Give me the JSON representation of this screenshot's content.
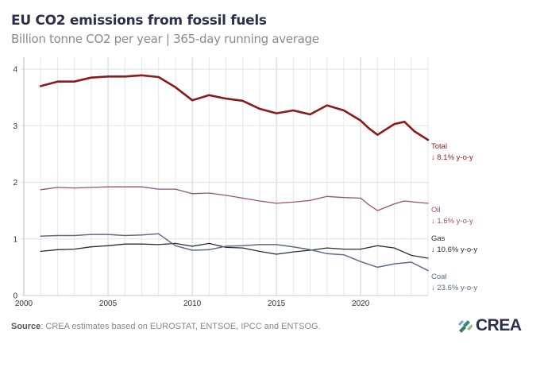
{
  "header": {
    "title": "EU CO2 emissions from fossil fuels",
    "subtitle": "Billion tonne CO2 per year | 365-day running average"
  },
  "footer": {
    "source_label": "Source",
    "source_text": ": CREA estimates based on EUROSTAT, ENTSOE, IPCC and ENTSOG.",
    "logo_text": "CREA",
    "logo_icon": "crea-leaf-icon"
  },
  "chart_data": {
    "type": "line",
    "title": "EU CO2 emissions from fossil fuels",
    "subtitle": "Billion tonne CO2 per year | 365-day running average",
    "xlabel": "",
    "ylabel": "Billion tonne CO2 per year",
    "xlim": [
      2000,
      2024
    ],
    "ylim": [
      0,
      4.2
    ],
    "grid": true,
    "x_ticks": [
      "2000",
      "2005",
      "2010",
      "2015",
      "2020"
    ],
    "x_tick_values": [
      2000,
      2005,
      2010,
      2015,
      2020
    ],
    "y_ticks": [
      "0",
      "1",
      "2",
      "3",
      "4"
    ],
    "y_tick_values": [
      0,
      1,
      2,
      3,
      4
    ],
    "legend": "direct-labels-right",
    "series": [
      {
        "name": "Total",
        "annotation": "↓ 8.1% y-o-y",
        "color": "#8b1a1a",
        "x": [
          2001,
          2002,
          2003,
          2004,
          2005,
          2006,
          2007,
          2008,
          2009,
          2010,
          2011,
          2012,
          2013,
          2014,
          2015,
          2016,
          2017,
          2018,
          2019,
          2020,
          2020.5,
          2021,
          2022,
          2022.6,
          2023.2,
          2024
        ],
        "values": [
          3.7,
          3.78,
          3.78,
          3.85,
          3.87,
          3.87,
          3.89,
          3.86,
          3.68,
          3.45,
          3.54,
          3.48,
          3.44,
          3.3,
          3.22,
          3.27,
          3.2,
          3.36,
          3.27,
          3.09,
          2.95,
          2.84,
          3.03,
          3.07,
          2.9,
          2.75
        ]
      },
      {
        "name": "Oil",
        "annotation": "↓ 1.6% y-o-y",
        "color": "#9b4f78",
        "x": [
          2001,
          2002,
          2003,
          2004,
          2005,
          2006,
          2007,
          2008,
          2009,
          2010,
          2011,
          2012,
          2013,
          2014,
          2015,
          2016,
          2017,
          2018,
          2019,
          2020,
          2020.5,
          2021,
          2022,
          2022.6,
          2023.2,
          2024
        ],
        "values": [
          1.87,
          1.91,
          1.9,
          1.91,
          1.92,
          1.92,
          1.92,
          1.88,
          1.88,
          1.8,
          1.81,
          1.77,
          1.72,
          1.67,
          1.63,
          1.65,
          1.68,
          1.75,
          1.73,
          1.72,
          1.6,
          1.5,
          1.62,
          1.67,
          1.65,
          1.63
        ]
      },
      {
        "name": "Gas",
        "annotation": "↓ 10.6% y-o-y",
        "color": "#2b2b2b",
        "x": [
          2001,
          2002,
          2003,
          2004,
          2005,
          2006,
          2007,
          2008,
          2009,
          2010,
          2011,
          2012,
          2013,
          2014,
          2015,
          2016,
          2017,
          2018,
          2019,
          2020,
          2021,
          2022,
          2023,
          2024
        ],
        "values": [
          0.78,
          0.81,
          0.82,
          0.86,
          0.88,
          0.91,
          0.91,
          0.9,
          0.92,
          0.87,
          0.92,
          0.85,
          0.84,
          0.78,
          0.73,
          0.77,
          0.8,
          0.84,
          0.82,
          0.82,
          0.88,
          0.84,
          0.71,
          0.66
        ]
      },
      {
        "name": "Coal",
        "annotation": "↓ 23.6% y-o-y",
        "color": "#5a6a8c",
        "x": [
          2001,
          2002,
          2003,
          2004,
          2005,
          2006,
          2007,
          2008,
          2009,
          2010,
          2011,
          2012,
          2013,
          2014,
          2015,
          2016,
          2017,
          2018,
          2019,
          2020,
          2021,
          2022,
          2023,
          2024
        ],
        "values": [
          1.05,
          1.06,
          1.06,
          1.08,
          1.08,
          1.06,
          1.07,
          1.09,
          0.88,
          0.8,
          0.81,
          0.87,
          0.88,
          0.9,
          0.9,
          0.86,
          0.81,
          0.74,
          0.72,
          0.6,
          0.5,
          0.56,
          0.59,
          0.44
        ]
      }
    ]
  }
}
